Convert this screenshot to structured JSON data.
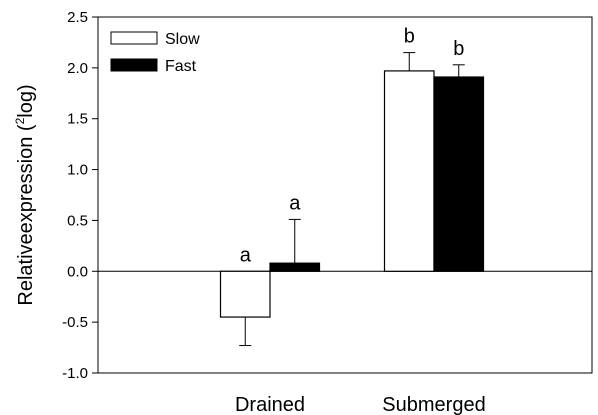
{
  "chart_data": {
    "type": "bar",
    "categories": [
      "Drained",
      "Submerged"
    ],
    "series": [
      {
        "name": "Slow",
        "color": "#ffffff",
        "values": [
          -0.45,
          1.97
        ],
        "errors": [
          0.28,
          0.18
        ],
        "labels": [
          "a",
          "b"
        ]
      },
      {
        "name": "Fast",
        "color": "#000000",
        "values": [
          0.08,
          1.91
        ],
        "errors": [
          0.43,
          0.12
        ],
        "labels": [
          "a",
          "b"
        ]
      }
    ],
    "ylim": [
      -1.0,
      2.5
    ],
    "yticks": [
      -1.0,
      -0.5,
      0.0,
      0.5,
      1.0,
      1.5,
      2.0,
      2.5
    ],
    "ytick_labels": [
      "-1.0",
      "-0.5",
      "0.0",
      "0.5",
      "1.0",
      "1.5",
      "2.0",
      "2.5"
    ],
    "ylabel_main": "Relativeexpression (",
    "ylabel_sup": "2",
    "ylabel_end": "log)",
    "legend_position": "top-left",
    "grid": false
  }
}
